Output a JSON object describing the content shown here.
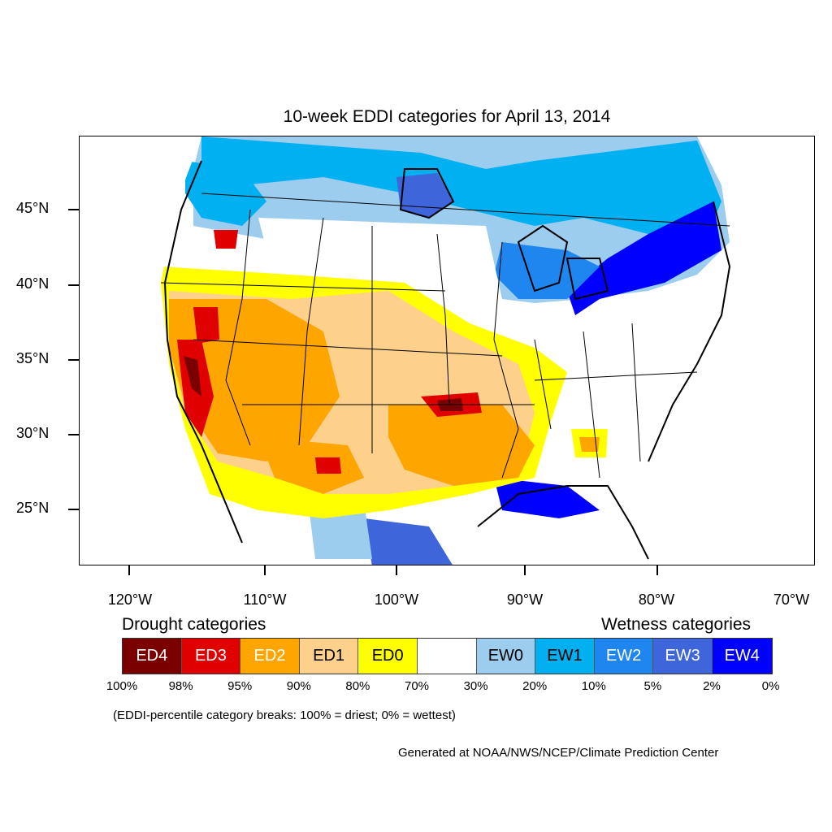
{
  "title": "10-week EDDI categories for April 13, 2014",
  "map": {
    "lat_labels": [
      "45°N",
      "40°N",
      "35°N",
      "30°N",
      "25°N"
    ],
    "lon_labels": [
      "120°W",
      "110°W",
      "100°W",
      "90°W",
      "80°W",
      "70°W"
    ],
    "colors": {
      "ED4": "#7a0000",
      "ED3": "#e00000",
      "ED2": "#ffa500",
      "ED1": "#fdd08c",
      "ED0": "#ffff00",
      "neutral": "#ffffff",
      "EW0": "#9ccdee",
      "EW1": "#00b0f0",
      "EW2": "#1e86ee",
      "EW3": "#3f65da",
      "EW4": "#0000ff"
    }
  },
  "legend": {
    "drought_heading": "Drought categories",
    "wetness_heading": "Wetness categories",
    "categories": [
      {
        "label": "ED4",
        "color": "#7a0000",
        "text_color": "#ffffff"
      },
      {
        "label": "ED3",
        "color": "#e00000",
        "text_color": "#ffffff"
      },
      {
        "label": "ED2",
        "color": "#ffa500",
        "text_color": "#ffffff"
      },
      {
        "label": "ED1",
        "color": "#fdd08c",
        "text_color": "#000000"
      },
      {
        "label": "ED0",
        "color": "#ffff00",
        "text_color": "#000000"
      },
      {
        "label": "",
        "color": "#ffffff",
        "text_color": "#000000"
      },
      {
        "label": "EW0",
        "color": "#9ccdee",
        "text_color": "#000000"
      },
      {
        "label": "EW1",
        "color": "#00b0f0",
        "text_color": "#000000"
      },
      {
        "label": "EW2",
        "color": "#1e86ee",
        "text_color": "#ffffff"
      },
      {
        "label": "EW3",
        "color": "#3f65da",
        "text_color": "#ffffff"
      },
      {
        "label": "EW4",
        "color": "#0000ff",
        "text_color": "#ffffff"
      }
    ],
    "percentiles": [
      "100%",
      "98%",
      "95%",
      "90%",
      "80%",
      "70%",
      "30%",
      "20%",
      "10%",
      "5%",
      "2%",
      "0%"
    ],
    "note": "(EDDI-percentile category breaks: 100% = driest; 0% = wettest)"
  },
  "credit": "Generated at NOAA/NWS/NCEP/Climate Prediction Center"
}
